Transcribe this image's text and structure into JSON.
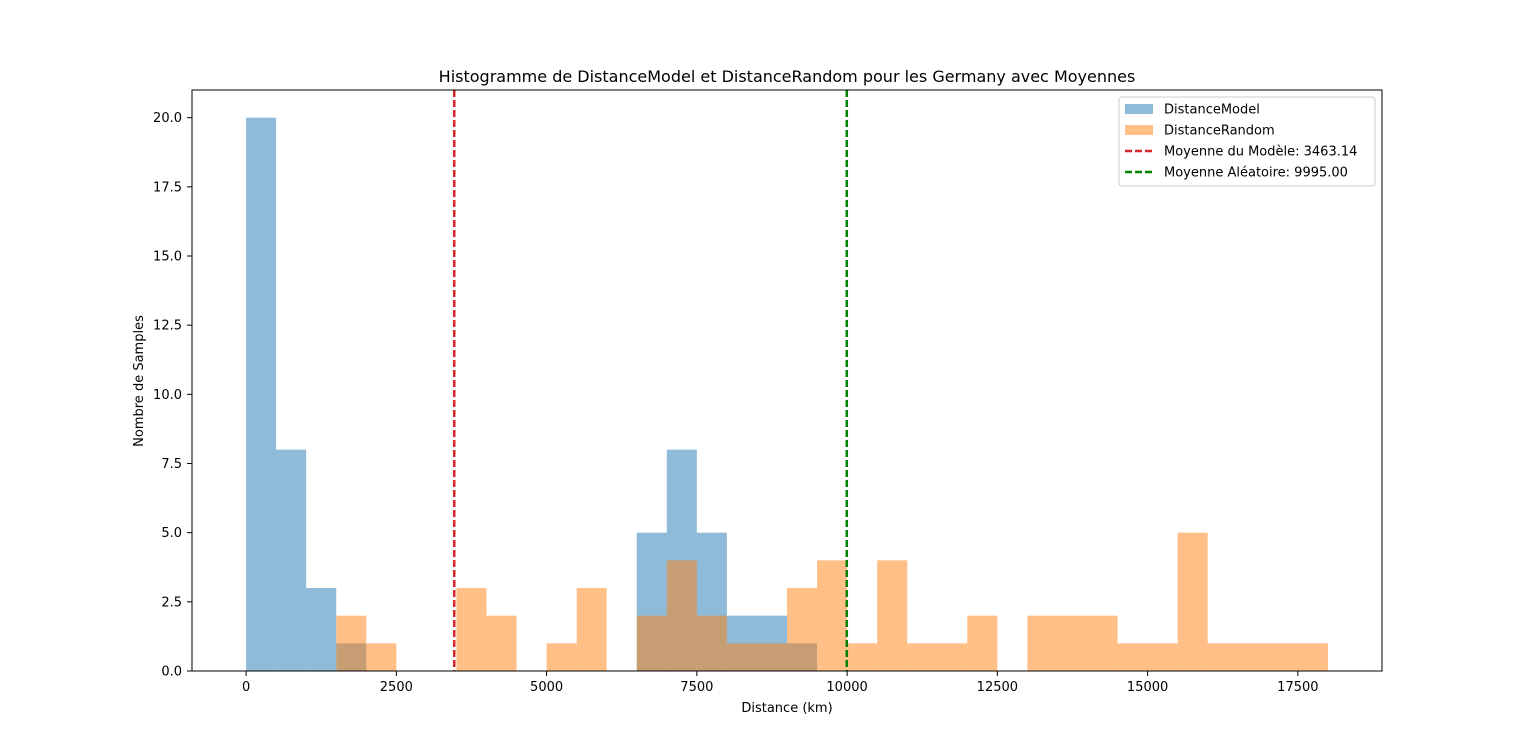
{
  "chart_data": {
    "type": "histogram",
    "title": "Histogramme de DistanceModel et DistanceRandom pour les Germany avec Moyennes",
    "xlabel": "Distance (km)",
    "ylabel": "Nombre de Samples",
    "xlim": [
      -900,
      18900
    ],
    "ylim": [
      0,
      21
    ],
    "x_ticks": [
      0,
      2500,
      5000,
      7500,
      10000,
      12500,
      15000,
      17500
    ],
    "y_ticks": [
      0.0,
      2.5,
      5.0,
      7.5,
      10.0,
      12.5,
      15.0,
      17.5,
      20.0
    ],
    "x_tick_labels": [
      "0",
      "2500",
      "5000",
      "7500",
      "10000",
      "12500",
      "15000",
      "17500"
    ],
    "y_tick_labels": [
      "0.0",
      "2.5",
      "5.0",
      "7.5",
      "10.0",
      "12.5",
      "15.0",
      "17.5",
      "20.0"
    ],
    "grid": false,
    "legend_position": "top-right",
    "series": [
      {
        "name": "DistanceModel",
        "color": "#1f77b4",
        "alpha": 0.5,
        "bins": [
          {
            "x0": 0,
            "x1": 500,
            "count": 20
          },
          {
            "x0": 500,
            "x1": 1000,
            "count": 8
          },
          {
            "x0": 1000,
            "x1": 1500,
            "count": 3
          },
          {
            "x0": 1500,
            "x1": 2000,
            "count": 1
          },
          {
            "x0": 6500,
            "x1": 7000,
            "count": 5
          },
          {
            "x0": 7000,
            "x1": 7500,
            "count": 8
          },
          {
            "x0": 7500,
            "x1": 8000,
            "count": 5
          },
          {
            "x0": 8000,
            "x1": 9000,
            "count": 2
          },
          {
            "x0": 9000,
            "x1": 9500,
            "count": 1
          }
        ]
      },
      {
        "name": "DistanceRandom",
        "color": "#ff7f0e",
        "alpha": 0.5,
        "bins": [
          {
            "x0": 1500,
            "x1": 2000,
            "count": 2
          },
          {
            "x0": 2000,
            "x1": 2500,
            "count": 1
          },
          {
            "x0": 3500,
            "x1": 4000,
            "count": 3
          },
          {
            "x0": 4000,
            "x1": 4500,
            "count": 2
          },
          {
            "x0": 5000,
            "x1": 5500,
            "count": 1
          },
          {
            "x0": 5500,
            "x1": 6000,
            "count": 3
          },
          {
            "x0": 6500,
            "x1": 7000,
            "count": 2
          },
          {
            "x0": 7000,
            "x1": 7500,
            "count": 4
          },
          {
            "x0": 7500,
            "x1": 8000,
            "count": 2
          },
          {
            "x0": 8000,
            "x1": 9000,
            "count": 1
          },
          {
            "x0": 9000,
            "x1": 9500,
            "count": 3
          },
          {
            "x0": 9500,
            "x1": 10000,
            "count": 4
          },
          {
            "x0": 10000,
            "x1": 10500,
            "count": 1
          },
          {
            "x0": 10500,
            "x1": 11000,
            "count": 4
          },
          {
            "x0": 11000,
            "x1": 12000,
            "count": 1
          },
          {
            "x0": 12000,
            "x1": 12500,
            "count": 2
          },
          {
            "x0": 13000,
            "x1": 14500,
            "count": 2
          },
          {
            "x0": 14500,
            "x1": 15500,
            "count": 1
          },
          {
            "x0": 15500,
            "x1": 16000,
            "count": 5
          },
          {
            "x0": 16000,
            "x1": 18000,
            "count": 1
          }
        ]
      }
    ],
    "mean_lines": [
      {
        "name": "Moyenne du Modèle: 3463.14",
        "x": 3463.14,
        "color": "#d62728"
      },
      {
        "name": "Moyenne Aléatoire: 9995.00",
        "x": 9995.0,
        "color": "#008000"
      }
    ]
  }
}
